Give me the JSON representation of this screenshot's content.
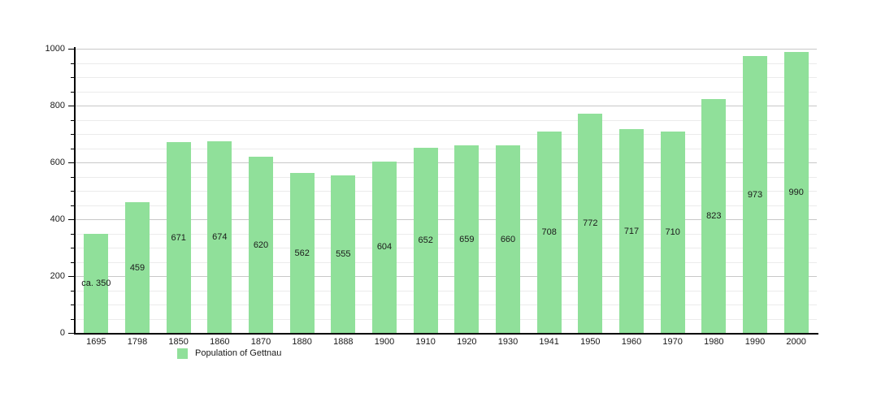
{
  "chart_data": {
    "type": "bar",
    "title": "",
    "legend": "Population of Gettnau",
    "legend_position": "bottom-left",
    "categories": [
      "1695",
      "1798",
      "1850",
      "1860",
      "1870",
      "1880",
      "1888",
      "1900",
      "1910",
      "1920",
      "1930",
      "1941",
      "1950",
      "1960",
      "1970",
      "1980",
      "1990",
      "2000"
    ],
    "values": [
      350,
      459,
      671,
      674,
      620,
      562,
      555,
      604,
      652,
      659,
      660,
      708,
      772,
      717,
      710,
      823,
      973,
      990
    ],
    "bar_labels": [
      "ca. 350",
      "459",
      "671",
      "674",
      "620",
      "562",
      "555",
      "604",
      "652",
      "659",
      "660",
      "708",
      "772",
      "717",
      "710",
      "823",
      "973",
      "990"
    ],
    "xlabel": "",
    "ylabel": "",
    "ylim": [
      0,
      1000
    ],
    "y_major_step": 200,
    "y_minor_step": 50,
    "y_tick_labels": [
      "0",
      "200",
      "400",
      "600",
      "800",
      "1000"
    ],
    "grid": true,
    "colors": {
      "bar_fill": "#90e09a",
      "grid_major": "#c8c8c8",
      "grid_minor": "#ebebeb",
      "axis": "#000000",
      "text": "#1a1a1a"
    }
  }
}
